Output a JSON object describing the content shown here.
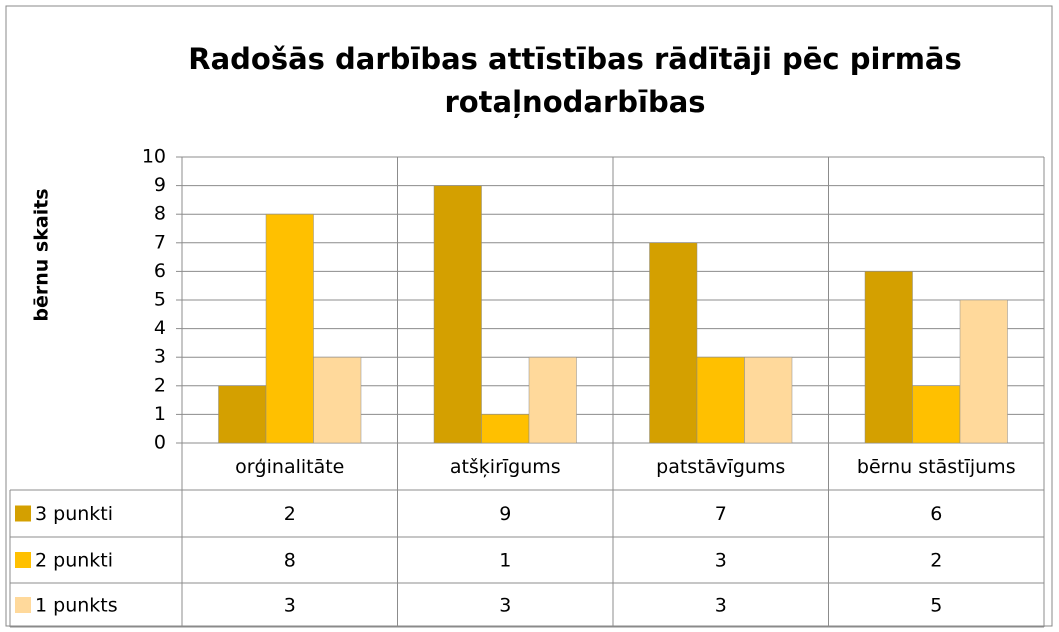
{
  "chart_data": {
    "type": "bar",
    "title": "Radošās darbības attīstības rādītāji pēc pirmās rotaļnodarbības",
    "y_label": "bērnu skaits",
    "categories": [
      "orģinalitāte",
      "atšķirīgums",
      "patstāvīgums",
      "bērnu stāstījums"
    ],
    "series": [
      {
        "name": "3 punkti",
        "color": "#d4a000",
        "values": [
          2,
          9,
          7,
          6
        ]
      },
      {
        "name": "2 punkti",
        "color": "#ffc000",
        "values": [
          8,
          1,
          3,
          2
        ]
      },
      {
        "name": "1 punkts",
        "color": "#ffd99b",
        "values": [
          3,
          3,
          3,
          5
        ]
      }
    ],
    "ylim": [
      0,
      10
    ],
    "yticks": [
      0,
      1,
      2,
      3,
      4,
      5,
      6,
      7,
      8,
      9,
      10
    ],
    "grid": true
  }
}
